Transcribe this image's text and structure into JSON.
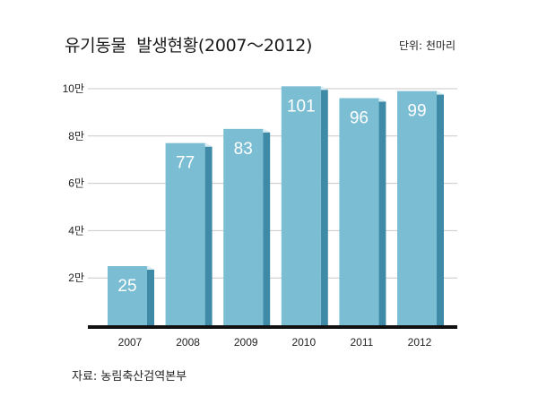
{
  "header": {
    "title": "유기동물  발생현황(2007～2012)",
    "unit": "단위: 천마리"
  },
  "footer": {
    "source": "자료: 농림축산검역본부"
  },
  "colors": {
    "bar_front": "#7bbdd2",
    "bar_side": "#3e8aa7",
    "bar_top": "#d9eef5",
    "grid": "#c9c9c9",
    "baseline": "#111111"
  },
  "chart_data": {
    "type": "bar",
    "categories": [
      "2007",
      "2008",
      "2009",
      "2010",
      "2011",
      "2012"
    ],
    "values": [
      25,
      77,
      83,
      101,
      96,
      99
    ],
    "data_labels": [
      "25",
      "77",
      "83",
      "101",
      "96",
      "99"
    ],
    "y_ticks": [
      20,
      40,
      60,
      80,
      100
    ],
    "y_tick_labels": [
      "2만",
      "4만",
      "6만",
      "8만",
      "10만"
    ],
    "ylim": [
      0,
      100
    ],
    "grid": true,
    "title": "유기동물  발생현황(2007～2012)"
  }
}
